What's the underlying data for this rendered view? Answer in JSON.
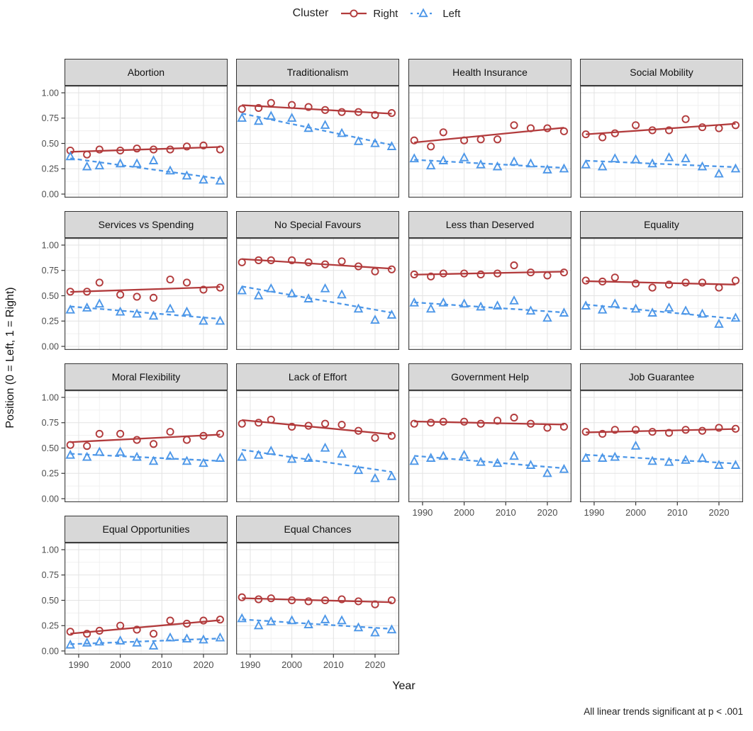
{
  "legend": {
    "title": "Cluster",
    "items": [
      {
        "label": "Right",
        "series": "Right"
      },
      {
        "label": "Left",
        "series": "Left"
      }
    ]
  },
  "axes": {
    "y_title": "Position (0 = Left, 1 = Right)",
    "x_title": "Year",
    "y_tick_labels": [
      "1.00",
      "0.75",
      "0.50",
      "0.25",
      "0.00"
    ],
    "x_tick_labels": [
      "1990",
      "2000",
      "2010",
      "2020"
    ]
  },
  "caption": "All linear trends significant at p < .001",
  "colors": {
    "right": "#b23b3c",
    "left": "#4d97e8",
    "strip_bg": "#d8d8d8",
    "grid_major": "#e3e3e3",
    "grid_minor": "#f1f1f1",
    "panel_border": "#4a4a4a",
    "tick_text": "#4d4d4d"
  },
  "chart_data": {
    "type": "scatter",
    "trend": "linear (OLS) per series per facet",
    "x": [
      1988,
      1992,
      1995,
      2000,
      2004,
      2008,
      2012,
      2016,
      2020,
      2024
    ],
    "x_ticks": [
      1990,
      2000,
      2010,
      2020
    ],
    "y_ticks": [
      1.0,
      0.75,
      0.5,
      0.25,
      0.0
    ],
    "x_minor_ticks": [
      1995,
      2005,
      2015,
      2025
    ],
    "y_minor_ticks": [
      0.125,
      0.375,
      0.625,
      0.875
    ],
    "xlim": [
      1986.6,
      2025.8
    ],
    "ylim": [
      -0.035,
      1.07
    ],
    "legend_position": "top",
    "grid": true,
    "series": [
      {
        "name": "Right",
        "marker": "circle",
        "line": "solid"
      },
      {
        "name": "Left",
        "marker": "triangle",
        "line": "dashed"
      }
    ],
    "facets": [
      {
        "title": "Abortion",
        "Right": [
          0.43,
          0.39,
          0.44,
          0.43,
          0.45,
          0.44,
          0.44,
          0.47,
          0.48,
          0.44
        ],
        "Left": [
          0.37,
          0.27,
          0.28,
          0.3,
          0.3,
          0.33,
          0.23,
          0.18,
          0.14,
          0.13
        ]
      },
      {
        "title": "Traditionalism",
        "Right": [
          0.84,
          0.85,
          0.9,
          0.88,
          0.86,
          0.83,
          0.81,
          0.81,
          0.78,
          0.8
        ],
        "Left": [
          0.75,
          0.72,
          0.77,
          0.75,
          0.65,
          0.68,
          0.6,
          0.52,
          0.5,
          0.47
        ]
      },
      {
        "title": "Health Insurance",
        "Right": [
          0.53,
          0.47,
          0.61,
          0.53,
          0.54,
          0.54,
          0.68,
          0.65,
          0.65,
          0.62
        ],
        "Left": [
          0.35,
          0.28,
          0.33,
          0.36,
          0.29,
          0.27,
          0.32,
          0.3,
          0.24,
          0.25
        ]
      },
      {
        "title": "Social Mobility",
        "Right": [
          0.59,
          0.56,
          0.6,
          0.68,
          0.63,
          0.63,
          0.74,
          0.66,
          0.65,
          0.68
        ],
        "Left": [
          0.29,
          0.27,
          0.35,
          0.34,
          0.3,
          0.36,
          0.35,
          0.27,
          0.2,
          0.25
        ]
      },
      {
        "title": "Services vs Spending",
        "Right": [
          0.54,
          0.54,
          0.63,
          0.51,
          0.49,
          0.48,
          0.66,
          0.63,
          0.56,
          0.58
        ],
        "Left": [
          0.36,
          0.38,
          0.42,
          0.34,
          0.32,
          0.3,
          0.37,
          0.34,
          0.25,
          0.25
        ]
      },
      {
        "title": "No Special Favours",
        "Right": [
          0.83,
          0.85,
          0.85,
          0.85,
          0.83,
          0.81,
          0.84,
          0.79,
          0.74,
          0.76
        ],
        "Left": [
          0.55,
          0.5,
          0.57,
          0.52,
          0.47,
          0.57,
          0.51,
          0.37,
          0.26,
          0.31
        ]
      },
      {
        "title": "Less than Deserved",
        "Right": [
          0.71,
          0.69,
          0.72,
          0.72,
          0.71,
          0.72,
          0.8,
          0.73,
          0.7,
          0.73
        ],
        "Left": [
          0.43,
          0.37,
          0.43,
          0.42,
          0.39,
          0.4,
          0.45,
          0.35,
          0.28,
          0.33
        ]
      },
      {
        "title": "Equality",
        "Right": [
          0.65,
          0.64,
          0.68,
          0.62,
          0.58,
          0.61,
          0.63,
          0.63,
          0.58,
          0.65
        ],
        "Left": [
          0.4,
          0.36,
          0.42,
          0.37,
          0.33,
          0.38,
          0.35,
          0.32,
          0.22,
          0.28
        ]
      },
      {
        "title": "Moral Flexibility",
        "Right": [
          0.53,
          0.52,
          0.64,
          0.64,
          0.58,
          0.54,
          0.66,
          0.58,
          0.62,
          0.64
        ],
        "Left": [
          0.43,
          0.41,
          0.46,
          0.46,
          0.41,
          0.37,
          0.42,
          0.37,
          0.35,
          0.4
        ]
      },
      {
        "title": "Lack of Effort",
        "Right": [
          0.74,
          0.75,
          0.78,
          0.71,
          0.72,
          0.74,
          0.73,
          0.67,
          0.6,
          0.62
        ],
        "Left": [
          0.41,
          0.43,
          0.47,
          0.39,
          0.4,
          0.5,
          0.44,
          0.28,
          0.2,
          0.22
        ]
      },
      {
        "title": "Government Help",
        "Right": [
          0.74,
          0.75,
          0.76,
          0.76,
          0.74,
          0.77,
          0.8,
          0.74,
          0.7,
          0.71
        ],
        "Left": [
          0.37,
          0.4,
          0.42,
          0.43,
          0.36,
          0.35,
          0.42,
          0.33,
          0.25,
          0.29
        ]
      },
      {
        "title": "Job Guarantee",
        "Right": [
          0.66,
          0.64,
          0.68,
          0.68,
          0.66,
          0.65,
          0.68,
          0.67,
          0.7,
          0.69
        ],
        "Left": [
          0.4,
          0.4,
          0.41,
          0.52,
          0.37,
          0.36,
          0.38,
          0.4,
          0.33,
          0.33
        ]
      },
      {
        "title": "Equal Opportunities",
        "Right": [
          0.19,
          0.17,
          0.2,
          0.25,
          0.21,
          0.17,
          0.3,
          0.27,
          0.3,
          0.31
        ],
        "Left": [
          0.06,
          0.08,
          0.09,
          0.1,
          0.08,
          0.05,
          0.13,
          0.12,
          0.11,
          0.13
        ]
      },
      {
        "title": "Equal Chances",
        "Right": [
          0.53,
          0.51,
          0.52,
          0.5,
          0.49,
          0.5,
          0.51,
          0.49,
          0.46,
          0.5
        ],
        "Left": [
          0.32,
          0.25,
          0.29,
          0.3,
          0.26,
          0.31,
          0.3,
          0.23,
          0.18,
          0.21
        ]
      }
    ]
  }
}
